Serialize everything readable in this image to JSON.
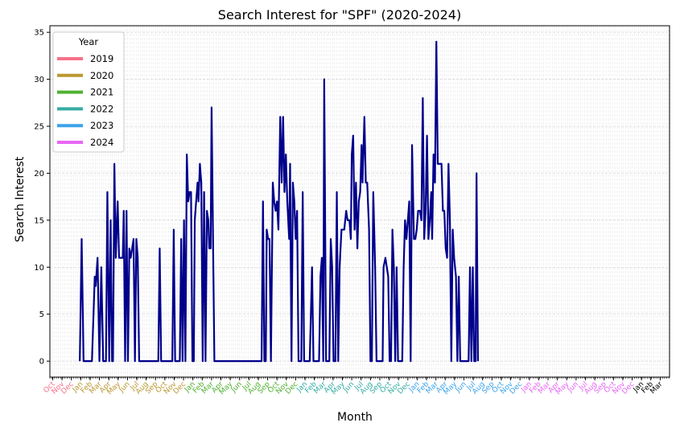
{
  "chart_data": {
    "type": "line",
    "title": "Search Interest for \"SPF\" (2020-2024)",
    "xlabel": "Month",
    "ylabel": "Search Interest",
    "ylim": [
      -1.7,
      35.7
    ],
    "yticks": [
      0,
      5,
      10,
      15,
      20,
      25,
      30,
      35
    ],
    "grid": true,
    "legend": {
      "title": "Year",
      "placement": "top-left",
      "entries": [
        {
          "label": "2019",
          "color": "#f77189"
        },
        {
          "label": "2020",
          "color": "#bb9832"
        },
        {
          "label": "2021",
          "color": "#50b131"
        },
        {
          "label": "2022",
          "color": "#36ada4"
        },
        {
          "label": "2023",
          "color": "#3ba3ec"
        },
        {
          "label": "2024",
          "color": "#e866f4"
        }
      ]
    },
    "x_ticks": [
      {
        "label": "Oct",
        "year": "2019"
      },
      {
        "label": "Nov",
        "year": "2019"
      },
      {
        "label": "Dec",
        "year": "2019"
      },
      {
        "label": "Jan",
        "year": "2020"
      },
      {
        "label": "Feb",
        "year": "2020"
      },
      {
        "label": "Mar",
        "year": "2020"
      },
      {
        "label": "Apr",
        "year": "2020"
      },
      {
        "label": "May",
        "year": "2020"
      },
      {
        "label": "Jun",
        "year": "2020"
      },
      {
        "label": "Jul",
        "year": "2020"
      },
      {
        "label": "Aug",
        "year": "2020"
      },
      {
        "label": "Sep",
        "year": "2020"
      },
      {
        "label": "Oct",
        "year": "2020"
      },
      {
        "label": "Nov",
        "year": "2020"
      },
      {
        "label": "Dec",
        "year": "2020"
      },
      {
        "label": "Jan",
        "year": "2021"
      },
      {
        "label": "Feb",
        "year": "2021"
      },
      {
        "label": "Mar",
        "year": "2021"
      },
      {
        "label": "Apr",
        "year": "2021"
      },
      {
        "label": "May",
        "year": "2021"
      },
      {
        "label": "Jun",
        "year": "2021"
      },
      {
        "label": "Jul",
        "year": "2021"
      },
      {
        "label": "Aug",
        "year": "2021"
      },
      {
        "label": "Sep",
        "year": "2021"
      },
      {
        "label": "Oct",
        "year": "2021"
      },
      {
        "label": "Nov",
        "year": "2021"
      },
      {
        "label": "Dec",
        "year": "2021"
      },
      {
        "label": "Jan",
        "year": "2022"
      },
      {
        "label": "Feb",
        "year": "2022"
      },
      {
        "label": "Mar",
        "year": "2022"
      },
      {
        "label": "Apr",
        "year": "2022"
      },
      {
        "label": "May",
        "year": "2022"
      },
      {
        "label": "Jun",
        "year": "2022"
      },
      {
        "label": "Jul",
        "year": "2022"
      },
      {
        "label": "Aug",
        "year": "2022"
      },
      {
        "label": "Sep",
        "year": "2022"
      },
      {
        "label": "Oct",
        "year": "2022"
      },
      {
        "label": "Nov",
        "year": "2022"
      },
      {
        "label": "Dec",
        "year": "2022"
      },
      {
        "label": "Jan",
        "year": "2023"
      },
      {
        "label": "Feb",
        "year": "2023"
      },
      {
        "label": "Mar",
        "year": "2023"
      },
      {
        "label": "Apr",
        "year": "2023"
      },
      {
        "label": "May",
        "year": "2023"
      },
      {
        "label": "Jun",
        "year": "2023"
      },
      {
        "label": "Jul",
        "year": "2023"
      },
      {
        "label": "Aug",
        "year": "2023"
      },
      {
        "label": "Sep",
        "year": "2023"
      },
      {
        "label": "Oct",
        "year": "2023"
      },
      {
        "label": "Nov",
        "year": "2023"
      },
      {
        "label": "Dec",
        "year": "2023"
      },
      {
        "label": "Jan",
        "year": "2024"
      },
      {
        "label": "Feb",
        "year": "2024"
      },
      {
        "label": "Mar",
        "year": "2024"
      },
      {
        "label": "Apr",
        "year": "2024"
      },
      {
        "label": "May",
        "year": "2024"
      },
      {
        "label": "Jun",
        "year": "2024"
      },
      {
        "label": "Jul",
        "year": "2024"
      },
      {
        "label": "Aug",
        "year": "2024"
      },
      {
        "label": "Sep",
        "year": "2024"
      },
      {
        "label": "Oct",
        "year": "2024"
      },
      {
        "label": "Nov",
        "year": "2024"
      },
      {
        "label": "Dec",
        "year": "2024"
      },
      {
        "label": "Jan",
        "year": "2025"
      },
      {
        "label": "Feb",
        "year": "2025"
      },
      {
        "label": "Mar",
        "year": "2025"
      }
    ],
    "x_range_months": [
      -3.3,
      63
    ],
    "series": [
      {
        "color": "#00008b",
        "points": [
          [
            -0.1,
            0
          ],
          [
            0.1,
            13
          ],
          [
            0.3,
            0
          ],
          [
            0.8,
            0
          ],
          [
            1.2,
            0
          ],
          [
            1.5,
            9
          ],
          [
            1.6,
            8
          ],
          [
            1.8,
            11
          ],
          [
            2.0,
            0
          ],
          [
            2.2,
            10
          ],
          [
            2.4,
            0
          ],
          [
            2.7,
            0
          ],
          [
            2.85,
            18
          ],
          [
            3.05,
            0
          ],
          [
            3.2,
            15
          ],
          [
            3.35,
            0
          ],
          [
            3.45,
            0
          ],
          [
            3.6,
            21
          ],
          [
            3.75,
            11
          ],
          [
            3.95,
            17
          ],
          [
            4.1,
            11
          ],
          [
            4.5,
            11
          ],
          [
            4.6,
            16
          ],
          [
            4.75,
            0
          ],
          [
            4.9,
            16
          ],
          [
            5.05,
            0
          ],
          [
            5.2,
            12
          ],
          [
            5.35,
            11
          ],
          [
            5.5,
            12
          ],
          [
            5.65,
            13
          ],
          [
            5.8,
            0
          ],
          [
            5.95,
            13
          ],
          [
            6.1,
            11
          ],
          [
            6.25,
            0
          ],
          [
            7.0,
            0
          ],
          [
            8.0,
            0
          ],
          [
            8.3,
            0
          ],
          [
            8.45,
            12
          ],
          [
            8.6,
            0
          ],
          [
            9.0,
            0
          ],
          [
            9.8,
            0
          ],
          [
            9.95,
            14
          ],
          [
            10.1,
            0
          ],
          [
            10.6,
            0
          ],
          [
            10.75,
            13
          ],
          [
            10.9,
            0
          ],
          [
            11.05,
            15
          ],
          [
            11.2,
            0
          ],
          [
            11.35,
            22
          ],
          [
            11.5,
            17
          ],
          [
            11.65,
            18
          ],
          [
            11.8,
            18
          ],
          [
            11.95,
            0
          ],
          [
            12.1,
            0
          ],
          [
            12.2,
            15
          ],
          [
            12.5,
            19
          ],
          [
            12.6,
            17
          ],
          [
            12.75,
            21
          ],
          [
            12.9,
            19
          ],
          [
            13.05,
            0
          ],
          [
            13.2,
            18
          ],
          [
            13.35,
            0
          ],
          [
            13.5,
            16
          ],
          [
            13.65,
            15
          ],
          [
            13.75,
            12
          ],
          [
            13.9,
            12
          ],
          [
            14.0,
            27
          ],
          [
            14.3,
            0
          ],
          [
            15.0,
            0
          ],
          [
            16.0,
            0
          ],
          [
            17.0,
            0
          ],
          [
            18.0,
            0
          ],
          [
            19.0,
            0
          ],
          [
            19.35,
            0
          ],
          [
            19.5,
            17
          ],
          [
            19.65,
            0
          ],
          [
            19.8,
            0
          ],
          [
            19.9,
            14
          ],
          [
            20.05,
            13
          ],
          [
            20.2,
            13
          ],
          [
            20.35,
            0
          ],
          [
            20.55,
            19
          ],
          [
            20.7,
            17
          ],
          [
            20.85,
            16
          ],
          [
            21.0,
            17
          ],
          [
            21.15,
            14
          ],
          [
            21.35,
            26
          ],
          [
            21.5,
            19
          ],
          [
            21.65,
            26
          ],
          [
            21.8,
            18
          ],
          [
            21.95,
            22
          ],
          [
            22.1,
            17
          ],
          [
            22.3,
            13
          ],
          [
            22.4,
            21
          ],
          [
            22.55,
            0
          ],
          [
            22.7,
            19
          ],
          [
            22.85,
            17
          ],
          [
            23.0,
            13
          ],
          [
            23.15,
            16
          ],
          [
            23.3,
            0
          ],
          [
            23.6,
            0
          ],
          [
            23.75,
            18
          ],
          [
            23.9,
            0
          ],
          [
            24.5,
            0
          ],
          [
            24.75,
            10
          ],
          [
            24.9,
            0
          ],
          [
            25.5,
            0
          ],
          [
            25.65,
            9
          ],
          [
            25.8,
            11
          ],
          [
            25.95,
            0
          ],
          [
            26.05,
            30
          ],
          [
            26.25,
            0
          ],
          [
            26.6,
            0
          ],
          [
            26.75,
            13
          ],
          [
            26.9,
            10
          ],
          [
            27.05,
            0
          ],
          [
            27.25,
            0
          ],
          [
            27.4,
            18
          ],
          [
            27.55,
            0
          ],
          [
            27.7,
            10
          ],
          [
            27.9,
            14
          ],
          [
            28.2,
            14
          ],
          [
            28.4,
            16
          ],
          [
            28.55,
            15
          ],
          [
            28.75,
            15
          ],
          [
            28.9,
            13
          ],
          [
            29.0,
            22
          ],
          [
            29.15,
            24
          ],
          [
            29.3,
            14
          ],
          [
            29.45,
            19
          ],
          [
            29.6,
            12
          ],
          [
            29.75,
            17
          ],
          [
            29.9,
            18
          ],
          [
            30.05,
            23
          ],
          [
            30.15,
            19
          ],
          [
            30.35,
            26
          ],
          [
            30.5,
            19
          ],
          [
            30.65,
            19
          ],
          [
            30.85,
            14
          ],
          [
            31.0,
            0
          ],
          [
            31.15,
            0
          ],
          [
            31.3,
            18
          ],
          [
            31.5,
            10
          ],
          [
            31.65,
            0
          ],
          [
            32.3,
            0
          ],
          [
            32.4,
            10
          ],
          [
            32.6,
            11
          ],
          [
            32.75,
            10
          ],
          [
            32.9,
            9
          ],
          [
            33.05,
            0
          ],
          [
            33.2,
            0
          ],
          [
            33.35,
            14
          ],
          [
            33.5,
            10
          ],
          [
            33.65,
            0
          ],
          [
            33.8,
            10
          ],
          [
            33.95,
            0
          ],
          [
            34.2,
            0
          ],
          [
            34.4,
            0
          ],
          [
            34.55,
            10
          ],
          [
            34.7,
            15
          ],
          [
            34.85,
            13
          ],
          [
            35.0,
            15
          ],
          [
            35.15,
            17
          ],
          [
            35.3,
            0
          ],
          [
            35.45,
            23
          ],
          [
            35.65,
            13
          ],
          [
            35.8,
            13
          ],
          [
            35.95,
            14
          ],
          [
            36.1,
            16
          ],
          [
            36.3,
            16
          ],
          [
            36.45,
            15
          ],
          [
            36.6,
            28
          ],
          [
            36.75,
            13
          ],
          [
            36.9,
            16
          ],
          [
            37.05,
            24
          ],
          [
            37.2,
            13
          ],
          [
            37.35,
            15
          ],
          [
            37.5,
            18
          ],
          [
            37.6,
            13
          ],
          [
            37.75,
            22
          ],
          [
            37.9,
            19
          ],
          [
            38.05,
            34
          ],
          [
            38.2,
            21
          ],
          [
            38.4,
            21
          ],
          [
            38.6,
            21
          ],
          [
            38.75,
            16
          ],
          [
            38.9,
            16
          ],
          [
            39.05,
            12
          ],
          [
            39.2,
            11
          ],
          [
            39.35,
            21
          ],
          [
            39.5,
            15
          ],
          [
            39.65,
            0
          ],
          [
            39.8,
            14
          ],
          [
            39.95,
            11
          ],
          [
            40.15,
            9
          ],
          [
            40.3,
            0
          ],
          [
            40.45,
            9
          ],
          [
            40.6,
            0
          ],
          [
            41.0,
            0
          ],
          [
            41.5,
            0
          ],
          [
            41.65,
            10
          ],
          [
            41.8,
            0
          ],
          [
            41.95,
            10
          ],
          [
            42.1,
            0
          ],
          [
            42.25,
            0
          ],
          [
            42.35,
            20
          ],
          [
            42.5,
            0
          ]
        ]
      }
    ]
  }
}
